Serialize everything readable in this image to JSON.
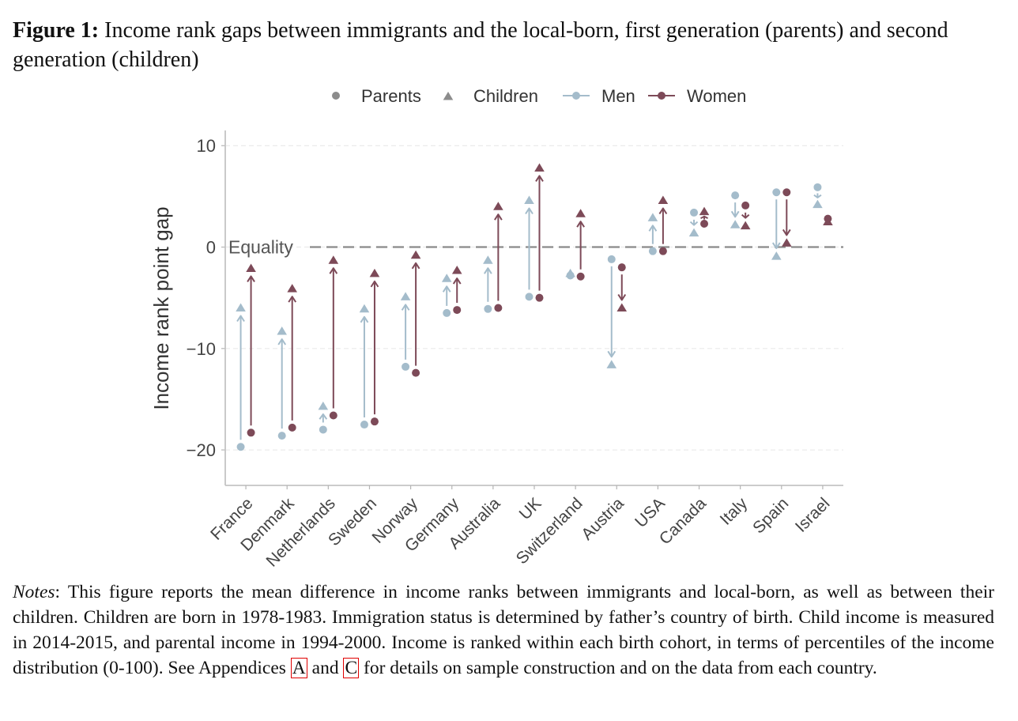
{
  "caption": {
    "label": "Figure 1:",
    "text": " Income rank gaps between immigrants and the local-born, first generation (parents) and second generation (children)"
  },
  "notes": {
    "label": "Notes",
    "text1": ": This figure reports the mean difference in income ranks between immigrants and local-born, as well as between their children. Children are born in 1978-1983. Immigration status is determined by father’s country of birth. Child income is measured in 2014-2015, and parental income in 1994-2000. Income is ranked within each birth cohort, in terms of percentiles of the income distribution (0-100). See Appendices ",
    "ref1": "A",
    "text2": " and ",
    "ref2": "C",
    "text3": " for details on sample construction and on the data from each country."
  },
  "colors": {
    "men": "#a4bccb",
    "women": "#7d4a58",
    "legend_gray": "#8c8c8c",
    "equality_line": "#8a8a8a"
  },
  "chart_data": {
    "type": "arrow-dot",
    "ylabel": "Income rank point gap",
    "ylim": [
      -23.5,
      11.5
    ],
    "yticks": [
      10,
      0,
      -10,
      -20
    ],
    "ytick_labels": [
      "10",
      "0",
      "−10",
      "−20"
    ],
    "grid": true,
    "reference_line": {
      "y": 0,
      "label": "Equality"
    },
    "legend": {
      "position": "top-center",
      "entries": [
        {
          "label": "Parents",
          "symbol": "circle"
        },
        {
          "label": "Children",
          "symbol": "triangle"
        },
        {
          "label": "Men",
          "symbol": "line-circle",
          "color": "#a4bccb"
        },
        {
          "label": "Women",
          "symbol": "line-circle",
          "color": "#7d4a58"
        }
      ]
    },
    "categories": [
      "France",
      "Denmark",
      "Netherlands",
      "Sweden",
      "Norway",
      "Germany",
      "Australia",
      "UK",
      "Switzerland",
      "Austria",
      "USA",
      "Canada",
      "Italy",
      "Spain",
      "Israel"
    ],
    "series": [
      {
        "name": "Men",
        "parents": [
          -19.7,
          -18.6,
          -18.0,
          -17.5,
          -11.8,
          -6.5,
          -6.1,
          -4.9,
          -2.8,
          -1.2,
          -0.4,
          3.4,
          5.1,
          5.4,
          5.9
        ],
        "children": [
          -6.0,
          -8.3,
          -15.7,
          -6.1,
          -4.9,
          -3.1,
          -1.3,
          4.6,
          -2.6,
          -11.6,
          2.9,
          1.4,
          2.2,
          -0.9,
          4.2
        ]
      },
      {
        "name": "Women",
        "parents": [
          -18.3,
          -17.8,
          -16.6,
          -17.2,
          -12.4,
          -6.2,
          -6.0,
          -5.0,
          -2.9,
          -2.0,
          -0.4,
          2.3,
          4.1,
          5.4,
          2.8
        ],
        "children": [
          -2.1,
          -4.1,
          -1.3,
          -2.6,
          -0.8,
          -2.3,
          4.0,
          7.8,
          3.3,
          -6.0,
          4.6,
          3.5,
          2.1,
          0.4,
          2.5
        ]
      }
    ]
  }
}
